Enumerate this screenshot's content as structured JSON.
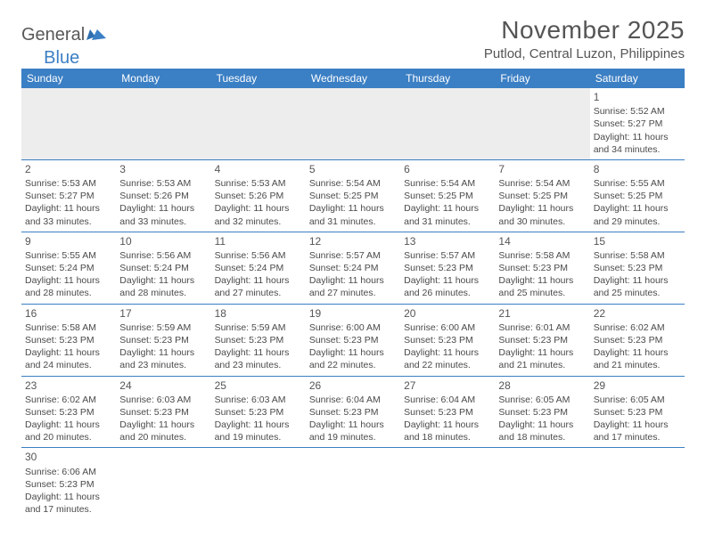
{
  "logo": {
    "text1": "General",
    "text2": "Blue"
  },
  "title": "November 2025",
  "location": "Putlod, Central Luzon, Philippines",
  "colors": {
    "header_bg": "#3b7fc4",
    "header_text": "#ffffff",
    "body_text": "#4a4a4a",
    "border": "#3b7fc4",
    "empty_bg": "#ededed"
  },
  "weekdays": [
    "Sunday",
    "Monday",
    "Tuesday",
    "Wednesday",
    "Thursday",
    "Friday",
    "Saturday"
  ],
  "weeks": [
    [
      null,
      null,
      null,
      null,
      null,
      null,
      {
        "n": "1",
        "sr": "Sunrise: 5:52 AM",
        "ss": "Sunset: 5:27 PM",
        "d1": "Daylight: 11 hours",
        "d2": "and 34 minutes."
      }
    ],
    [
      {
        "n": "2",
        "sr": "Sunrise: 5:53 AM",
        "ss": "Sunset: 5:27 PM",
        "d1": "Daylight: 11 hours",
        "d2": "and 33 minutes."
      },
      {
        "n": "3",
        "sr": "Sunrise: 5:53 AM",
        "ss": "Sunset: 5:26 PM",
        "d1": "Daylight: 11 hours",
        "d2": "and 33 minutes."
      },
      {
        "n": "4",
        "sr": "Sunrise: 5:53 AM",
        "ss": "Sunset: 5:26 PM",
        "d1": "Daylight: 11 hours",
        "d2": "and 32 minutes."
      },
      {
        "n": "5",
        "sr": "Sunrise: 5:54 AM",
        "ss": "Sunset: 5:25 PM",
        "d1": "Daylight: 11 hours",
        "d2": "and 31 minutes."
      },
      {
        "n": "6",
        "sr": "Sunrise: 5:54 AM",
        "ss": "Sunset: 5:25 PM",
        "d1": "Daylight: 11 hours",
        "d2": "and 31 minutes."
      },
      {
        "n": "7",
        "sr": "Sunrise: 5:54 AM",
        "ss": "Sunset: 5:25 PM",
        "d1": "Daylight: 11 hours",
        "d2": "and 30 minutes."
      },
      {
        "n": "8",
        "sr": "Sunrise: 5:55 AM",
        "ss": "Sunset: 5:25 PM",
        "d1": "Daylight: 11 hours",
        "d2": "and 29 minutes."
      }
    ],
    [
      {
        "n": "9",
        "sr": "Sunrise: 5:55 AM",
        "ss": "Sunset: 5:24 PM",
        "d1": "Daylight: 11 hours",
        "d2": "and 28 minutes."
      },
      {
        "n": "10",
        "sr": "Sunrise: 5:56 AM",
        "ss": "Sunset: 5:24 PM",
        "d1": "Daylight: 11 hours",
        "d2": "and 28 minutes."
      },
      {
        "n": "11",
        "sr": "Sunrise: 5:56 AM",
        "ss": "Sunset: 5:24 PM",
        "d1": "Daylight: 11 hours",
        "d2": "and 27 minutes."
      },
      {
        "n": "12",
        "sr": "Sunrise: 5:57 AM",
        "ss": "Sunset: 5:24 PM",
        "d1": "Daylight: 11 hours",
        "d2": "and 27 minutes."
      },
      {
        "n": "13",
        "sr": "Sunrise: 5:57 AM",
        "ss": "Sunset: 5:23 PM",
        "d1": "Daylight: 11 hours",
        "d2": "and 26 minutes."
      },
      {
        "n": "14",
        "sr": "Sunrise: 5:58 AM",
        "ss": "Sunset: 5:23 PM",
        "d1": "Daylight: 11 hours",
        "d2": "and 25 minutes."
      },
      {
        "n": "15",
        "sr": "Sunrise: 5:58 AM",
        "ss": "Sunset: 5:23 PM",
        "d1": "Daylight: 11 hours",
        "d2": "and 25 minutes."
      }
    ],
    [
      {
        "n": "16",
        "sr": "Sunrise: 5:58 AM",
        "ss": "Sunset: 5:23 PM",
        "d1": "Daylight: 11 hours",
        "d2": "and 24 minutes."
      },
      {
        "n": "17",
        "sr": "Sunrise: 5:59 AM",
        "ss": "Sunset: 5:23 PM",
        "d1": "Daylight: 11 hours",
        "d2": "and 23 minutes."
      },
      {
        "n": "18",
        "sr": "Sunrise: 5:59 AM",
        "ss": "Sunset: 5:23 PM",
        "d1": "Daylight: 11 hours",
        "d2": "and 23 minutes."
      },
      {
        "n": "19",
        "sr": "Sunrise: 6:00 AM",
        "ss": "Sunset: 5:23 PM",
        "d1": "Daylight: 11 hours",
        "d2": "and 22 minutes."
      },
      {
        "n": "20",
        "sr": "Sunrise: 6:00 AM",
        "ss": "Sunset: 5:23 PM",
        "d1": "Daylight: 11 hours",
        "d2": "and 22 minutes."
      },
      {
        "n": "21",
        "sr": "Sunrise: 6:01 AM",
        "ss": "Sunset: 5:23 PM",
        "d1": "Daylight: 11 hours",
        "d2": "and 21 minutes."
      },
      {
        "n": "22",
        "sr": "Sunrise: 6:02 AM",
        "ss": "Sunset: 5:23 PM",
        "d1": "Daylight: 11 hours",
        "d2": "and 21 minutes."
      }
    ],
    [
      {
        "n": "23",
        "sr": "Sunrise: 6:02 AM",
        "ss": "Sunset: 5:23 PM",
        "d1": "Daylight: 11 hours",
        "d2": "and 20 minutes."
      },
      {
        "n": "24",
        "sr": "Sunrise: 6:03 AM",
        "ss": "Sunset: 5:23 PM",
        "d1": "Daylight: 11 hours",
        "d2": "and 20 minutes."
      },
      {
        "n": "25",
        "sr": "Sunrise: 6:03 AM",
        "ss": "Sunset: 5:23 PM",
        "d1": "Daylight: 11 hours",
        "d2": "and 19 minutes."
      },
      {
        "n": "26",
        "sr": "Sunrise: 6:04 AM",
        "ss": "Sunset: 5:23 PM",
        "d1": "Daylight: 11 hours",
        "d2": "and 19 minutes."
      },
      {
        "n": "27",
        "sr": "Sunrise: 6:04 AM",
        "ss": "Sunset: 5:23 PM",
        "d1": "Daylight: 11 hours",
        "d2": "and 18 minutes."
      },
      {
        "n": "28",
        "sr": "Sunrise: 6:05 AM",
        "ss": "Sunset: 5:23 PM",
        "d1": "Daylight: 11 hours",
        "d2": "and 18 minutes."
      },
      {
        "n": "29",
        "sr": "Sunrise: 6:05 AM",
        "ss": "Sunset: 5:23 PM",
        "d1": "Daylight: 11 hours",
        "d2": "and 17 minutes."
      }
    ],
    [
      {
        "n": "30",
        "sr": "Sunrise: 6:06 AM",
        "ss": "Sunset: 5:23 PM",
        "d1": "Daylight: 11 hours",
        "d2": "and 17 minutes."
      },
      null,
      null,
      null,
      null,
      null,
      null
    ]
  ]
}
